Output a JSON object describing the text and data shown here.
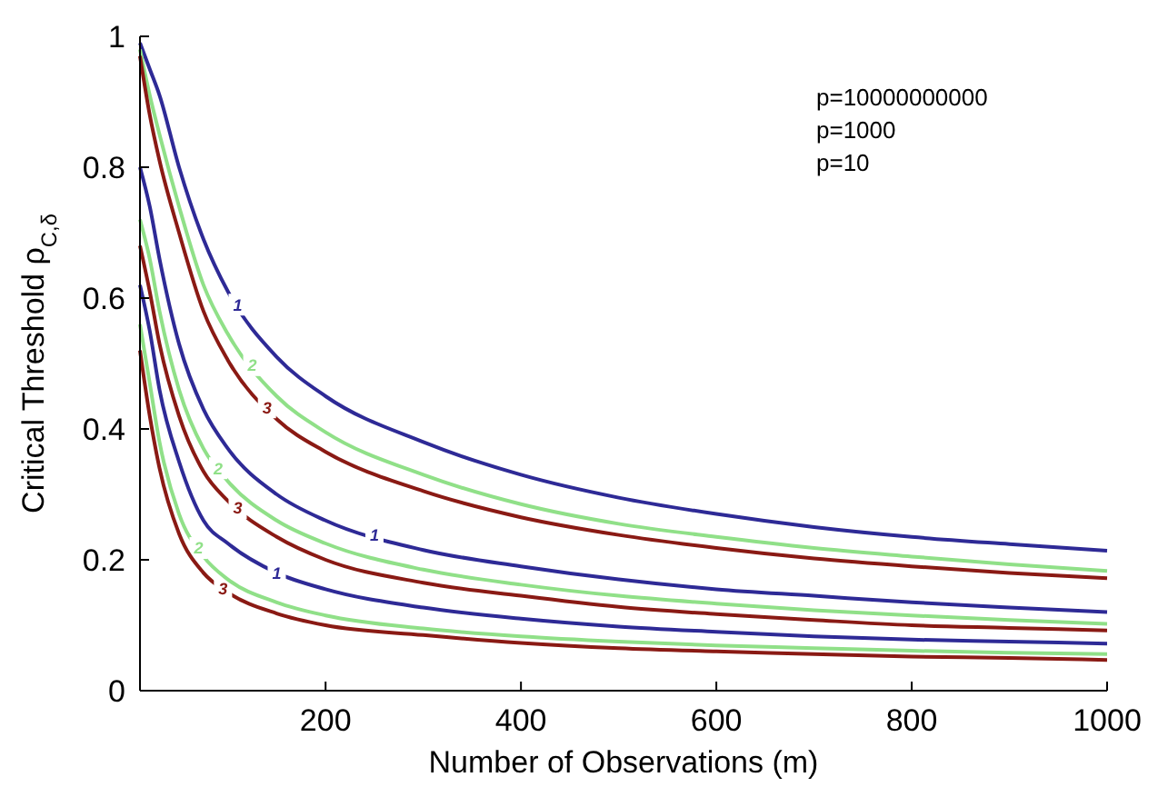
{
  "chart_data": {
    "type": "line",
    "xlabel": "Number of Observations (m)",
    "ylabel": "Critical Threshold  ρ$_{C,δ}$",
    "annotations": [
      "p=10000000000",
      "p=1000",
      "p=10"
    ],
    "x": [
      10,
      20,
      30,
      50,
      75,
      100,
      150,
      200,
      300,
      400,
      500,
      600,
      700,
      800,
      900,
      1000
    ],
    "xlim": [
      10,
      1000
    ],
    "xticks": [
      200,
      400,
      600,
      800,
      1000
    ],
    "ylim": [
      0,
      1
    ],
    "yticks": [
      0,
      0.2,
      0.4,
      0.6,
      0.8,
      1
    ],
    "grid": false,
    "legend": false,
    "marker": "none",
    "line_style": "solid",
    "series": [
      {
        "name": "1",
        "color": "#2e2a96",
        "values": [
          0.99,
          0.95,
          0.91,
          0.8,
          0.69,
          0.61,
          0.51,
          0.45,
          0.38,
          0.33,
          0.295,
          0.27,
          0.25,
          0.235,
          0.224,
          0.214
        ]
      },
      {
        "name": "2",
        "color": "#90e088",
        "values": [
          0.98,
          0.91,
          0.85,
          0.74,
          0.62,
          0.545,
          0.45,
          0.395,
          0.33,
          0.285,
          0.255,
          0.235,
          0.218,
          0.205,
          0.193,
          0.183
        ]
      },
      {
        "name": "3",
        "color": "#8a1a14",
        "values": [
          0.97,
          0.88,
          0.81,
          0.7,
          0.58,
          0.505,
          0.415,
          0.365,
          0.305,
          0.265,
          0.238,
          0.218,
          0.202,
          0.19,
          0.18,
          0.172
        ]
      },
      {
        "name": "1",
        "color": "#2e2a96",
        "values": [
          0.8,
          0.74,
          0.66,
          0.53,
          0.43,
          0.37,
          0.3,
          0.26,
          0.215,
          0.19,
          0.17,
          0.155,
          0.145,
          0.135,
          0.127,
          0.12
        ]
      },
      {
        "name": "2",
        "color": "#90e088",
        "values": [
          0.72,
          0.66,
          0.58,
          0.46,
          0.37,
          0.32,
          0.26,
          0.225,
          0.185,
          0.162,
          0.145,
          0.133,
          0.123,
          0.115,
          0.108,
          0.102
        ]
      },
      {
        "name": "3",
        "color": "#8a1a14",
        "values": [
          0.68,
          0.61,
          0.53,
          0.42,
          0.335,
          0.29,
          0.235,
          0.2,
          0.165,
          0.145,
          0.128,
          0.117,
          0.108,
          0.1,
          0.096,
          0.092
        ]
      },
      {
        "name": "1",
        "color": "#2e2a96",
        "values": [
          0.62,
          0.55,
          0.46,
          0.35,
          0.26,
          0.225,
          0.18,
          0.155,
          0.127,
          0.11,
          0.098,
          0.09,
          0.083,
          0.078,
          0.075,
          0.072
        ]
      },
      {
        "name": "2",
        "color": "#90e088",
        "values": [
          0.56,
          0.47,
          0.38,
          0.27,
          0.205,
          0.17,
          0.135,
          0.115,
          0.095,
          0.083,
          0.075,
          0.069,
          0.065,
          0.061,
          0.058,
          0.056
        ]
      },
      {
        "name": "3",
        "color": "#8a1a14",
        "values": [
          0.52,
          0.42,
          0.34,
          0.24,
          0.18,
          0.15,
          0.118,
          0.1,
          0.085,
          0.073,
          0.065,
          0.06,
          0.056,
          0.052,
          0.05,
          0.047
        ]
      }
    ]
  }
}
